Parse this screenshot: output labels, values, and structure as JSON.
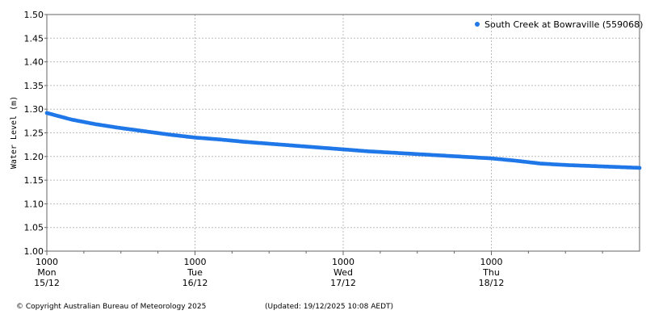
{
  "chart_data": {
    "type": "scatter",
    "title": "",
    "ylabel": "Water Level (m)",
    "xlabel": "",
    "ylim": [
      1.0,
      1.5
    ],
    "yticks": [
      "1.50",
      "1.45",
      "1.40",
      "1.35",
      "1.30",
      "1.25",
      "1.20",
      "1.15",
      "1.10",
      "1.05",
      "1.00"
    ],
    "xlim": [
      "2025-12-15 10:00",
      "2025-12-19 10:00"
    ],
    "xticks": [
      {
        "time": "1000",
        "day": "Mon",
        "date": "15/12"
      },
      {
        "time": "1000",
        "day": "Tue",
        "date": "16/12"
      },
      {
        "time": "1000",
        "day": "Wed",
        "date": "17/12"
      },
      {
        "time": "1000",
        "day": "Thu",
        "date": "18/12"
      }
    ],
    "grid": true,
    "legend_position": "top-right",
    "series": [
      {
        "name": "South Creek at Bowraville (559068)",
        "color": "#1f77e8",
        "x": [
          "2025-12-15 10:00",
          "2025-12-15 14:00",
          "2025-12-15 18:00",
          "2025-12-15 22:00",
          "2025-12-16 02:00",
          "2025-12-16 06:00",
          "2025-12-16 10:00",
          "2025-12-16 14:00",
          "2025-12-16 18:00",
          "2025-12-16 22:00",
          "2025-12-17 02:00",
          "2025-12-17 06:00",
          "2025-12-17 10:00",
          "2025-12-17 14:00",
          "2025-12-17 18:00",
          "2025-12-17 22:00",
          "2025-12-18 02:00",
          "2025-12-18 06:00",
          "2025-12-18 10:00",
          "2025-12-18 14:00",
          "2025-12-18 18:00",
          "2025-12-18 22:00",
          "2025-12-19 02:00",
          "2025-12-19 06:00",
          "2025-12-19 10:00"
        ],
        "y": [
          1.292,
          1.278,
          1.268,
          1.26,
          1.253,
          1.246,
          1.24,
          1.236,
          1.231,
          1.227,
          1.223,
          1.219,
          1.215,
          1.211,
          1.208,
          1.205,
          1.202,
          1.199,
          1.196,
          1.191,
          1.185,
          1.182,
          1.18,
          1.178,
          1.176
        ]
      }
    ]
  },
  "footer": {
    "copyright": "© Copyright Australian Bureau of Meteorology 2025",
    "updated": "(Updated: 19/12/2025 10:08 AEDT)"
  }
}
